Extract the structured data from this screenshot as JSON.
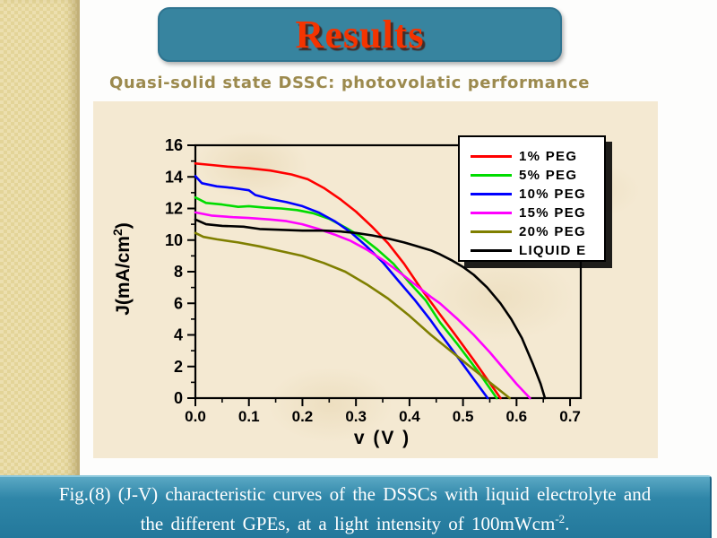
{
  "slide": {
    "title": "Results",
    "subtitle": "Quasi-solid state DSSC:  photovolatic performance",
    "caption_line1": "Fig.(8)  (J-V) characteristic curves of the DSSCs  with  liquid electrolyte and",
    "caption_line2_prefix": "the different GPEs, at a light  intensity of 100mWcm",
    "caption_line2_sup": "-2",
    "caption_line2_suffix": "."
  },
  "colors": {
    "title_box": "#37849f",
    "title_text": "#f43400",
    "subtitle_text": "#9c8a4e",
    "caption_bar": "#2f86a8",
    "panel_bg": "#f4e9d2",
    "strip_bg": "#ecdfaf",
    "axis": "#000000"
  },
  "chart_data": {
    "type": "line",
    "title": "",
    "xlabel": "v (V )",
    "ylabel_prefix": "J(mA/cm",
    "ylabel_sup": "2",
    "ylabel_suffix": ")",
    "xlim": [
      0.0,
      0.72
    ],
    "ylim": [
      0,
      16
    ],
    "x_ticks": [
      0.0,
      0.1,
      0.2,
      0.3,
      0.4,
      0.5,
      0.6,
      0.7
    ],
    "x_tick_labels": [
      "0.0",
      "0.1",
      "0.2",
      "0.3",
      "0.4",
      "0.5",
      "0.6",
      "0.7"
    ],
    "y_ticks": [
      0,
      2,
      4,
      6,
      8,
      10,
      12,
      14,
      16
    ],
    "y_tick_labels": [
      "0",
      "2",
      "4",
      "6",
      "8",
      "10",
      "12",
      "14",
      "16"
    ],
    "grid": false,
    "legend_position": "top-right",
    "series": [
      {
        "name": "1% PEG",
        "color": "#ff0000",
        "points": [
          [
            0,
            14.85
          ],
          [
            0.03,
            14.75
          ],
          [
            0.06,
            14.65
          ],
          [
            0.1,
            14.55
          ],
          [
            0.14,
            14.4
          ],
          [
            0.18,
            14.15
          ],
          [
            0.21,
            13.85
          ],
          [
            0.24,
            13.3
          ],
          [
            0.27,
            12.6
          ],
          [
            0.3,
            11.8
          ],
          [
            0.33,
            10.85
          ],
          [
            0.36,
            9.8
          ],
          [
            0.39,
            8.5
          ],
          [
            0.42,
            7.0
          ],
          [
            0.457,
            5.3
          ],
          [
            0.49,
            3.8
          ],
          [
            0.52,
            2.4
          ],
          [
            0.545,
            1.2
          ],
          [
            0.57,
            0
          ]
        ]
      },
      {
        "name": "5% PEG",
        "color": "#00dc00",
        "points": [
          [
            0,
            12.7
          ],
          [
            0.02,
            12.35
          ],
          [
            0.05,
            12.25
          ],
          [
            0.08,
            12.1
          ],
          [
            0.1,
            12.15
          ],
          [
            0.13,
            12.05
          ],
          [
            0.16,
            12.0
          ],
          [
            0.19,
            11.9
          ],
          [
            0.22,
            11.7
          ],
          [
            0.25,
            11.35
          ],
          [
            0.28,
            10.8
          ],
          [
            0.31,
            10.2
          ],
          [
            0.34,
            9.4
          ],
          [
            0.37,
            8.5
          ],
          [
            0.4,
            7.3
          ],
          [
            0.43,
            6.2
          ],
          [
            0.457,
            4.8
          ],
          [
            0.49,
            3.4
          ],
          [
            0.53,
            1.6
          ],
          [
            0.563,
            0
          ]
        ]
      },
      {
        "name": "10% PEG",
        "color": "#0000ff",
        "points": [
          [
            0,
            14.05
          ],
          [
            0.012,
            13.6
          ],
          [
            0.04,
            13.4
          ],
          [
            0.07,
            13.3
          ],
          [
            0.1,
            13.15
          ],
          [
            0.112,
            12.85
          ],
          [
            0.14,
            12.6
          ],
          [
            0.17,
            12.4
          ],
          [
            0.2,
            12.15
          ],
          [
            0.23,
            11.75
          ],
          [
            0.26,
            11.2
          ],
          [
            0.29,
            10.5
          ],
          [
            0.32,
            9.6
          ],
          [
            0.35,
            8.6
          ],
          [
            0.38,
            7.4
          ],
          [
            0.41,
            6.2
          ],
          [
            0.44,
            4.9
          ],
          [
            0.457,
            4.1
          ],
          [
            0.49,
            2.6
          ],
          [
            0.52,
            1.2
          ],
          [
            0.546,
            0
          ]
        ]
      },
      {
        "name": "15% PEG",
        "color": "#ff00ff",
        "points": [
          [
            0,
            11.75
          ],
          [
            0.03,
            11.55
          ],
          [
            0.07,
            11.45
          ],
          [
            0.1,
            11.4
          ],
          [
            0.14,
            11.3
          ],
          [
            0.17,
            11.2
          ],
          [
            0.2,
            11.0
          ],
          [
            0.23,
            10.7
          ],
          [
            0.26,
            10.35
          ],
          [
            0.29,
            9.95
          ],
          [
            0.32,
            9.4
          ],
          [
            0.35,
            8.75
          ],
          [
            0.38,
            8.0
          ],
          [
            0.41,
            7.2
          ],
          [
            0.44,
            6.4
          ],
          [
            0.457,
            6.0
          ],
          [
            0.49,
            5.0
          ],
          [
            0.52,
            4.0
          ],
          [
            0.55,
            2.9
          ],
          [
            0.58,
            1.7
          ],
          [
            0.6,
            0.9
          ],
          [
            0.625,
            0
          ]
        ]
      },
      {
        "name": "20% PEG",
        "color": "#7f7f00",
        "points": [
          [
            0,
            10.45
          ],
          [
            0.015,
            10.2
          ],
          [
            0.04,
            10.05
          ],
          [
            0.08,
            9.85
          ],
          [
            0.12,
            9.6
          ],
          [
            0.16,
            9.3
          ],
          [
            0.2,
            9.0
          ],
          [
            0.24,
            8.55
          ],
          [
            0.28,
            8.0
          ],
          [
            0.32,
            7.2
          ],
          [
            0.36,
            6.3
          ],
          [
            0.4,
            5.2
          ],
          [
            0.44,
            4.0
          ],
          [
            0.48,
            2.9
          ],
          [
            0.52,
            1.8
          ],
          [
            0.55,
            1.0
          ],
          [
            0.587,
            0
          ]
        ]
      },
      {
        "name": "LIQUID E",
        "color": "#000000",
        "points": [
          [
            0,
            11.3
          ],
          [
            0.02,
            11.0
          ],
          [
            0.05,
            10.9
          ],
          [
            0.09,
            10.85
          ],
          [
            0.12,
            10.7
          ],
          [
            0.16,
            10.65
          ],
          [
            0.2,
            10.6
          ],
          [
            0.24,
            10.6
          ],
          [
            0.27,
            10.55
          ],
          [
            0.3,
            10.45
          ],
          [
            0.33,
            10.3
          ],
          [
            0.36,
            10.1
          ],
          [
            0.39,
            9.85
          ],
          [
            0.41,
            9.65
          ],
          [
            0.44,
            9.35
          ],
          [
            0.457,
            9.1
          ],
          [
            0.48,
            8.7
          ],
          [
            0.5,
            8.3
          ],
          [
            0.52,
            7.8
          ],
          [
            0.545,
            7.0
          ],
          [
            0.57,
            6.0
          ],
          [
            0.59,
            5.0
          ],
          [
            0.61,
            3.8
          ],
          [
            0.63,
            2.2
          ],
          [
            0.645,
            0.9
          ],
          [
            0.653,
            0
          ]
        ]
      }
    ]
  }
}
